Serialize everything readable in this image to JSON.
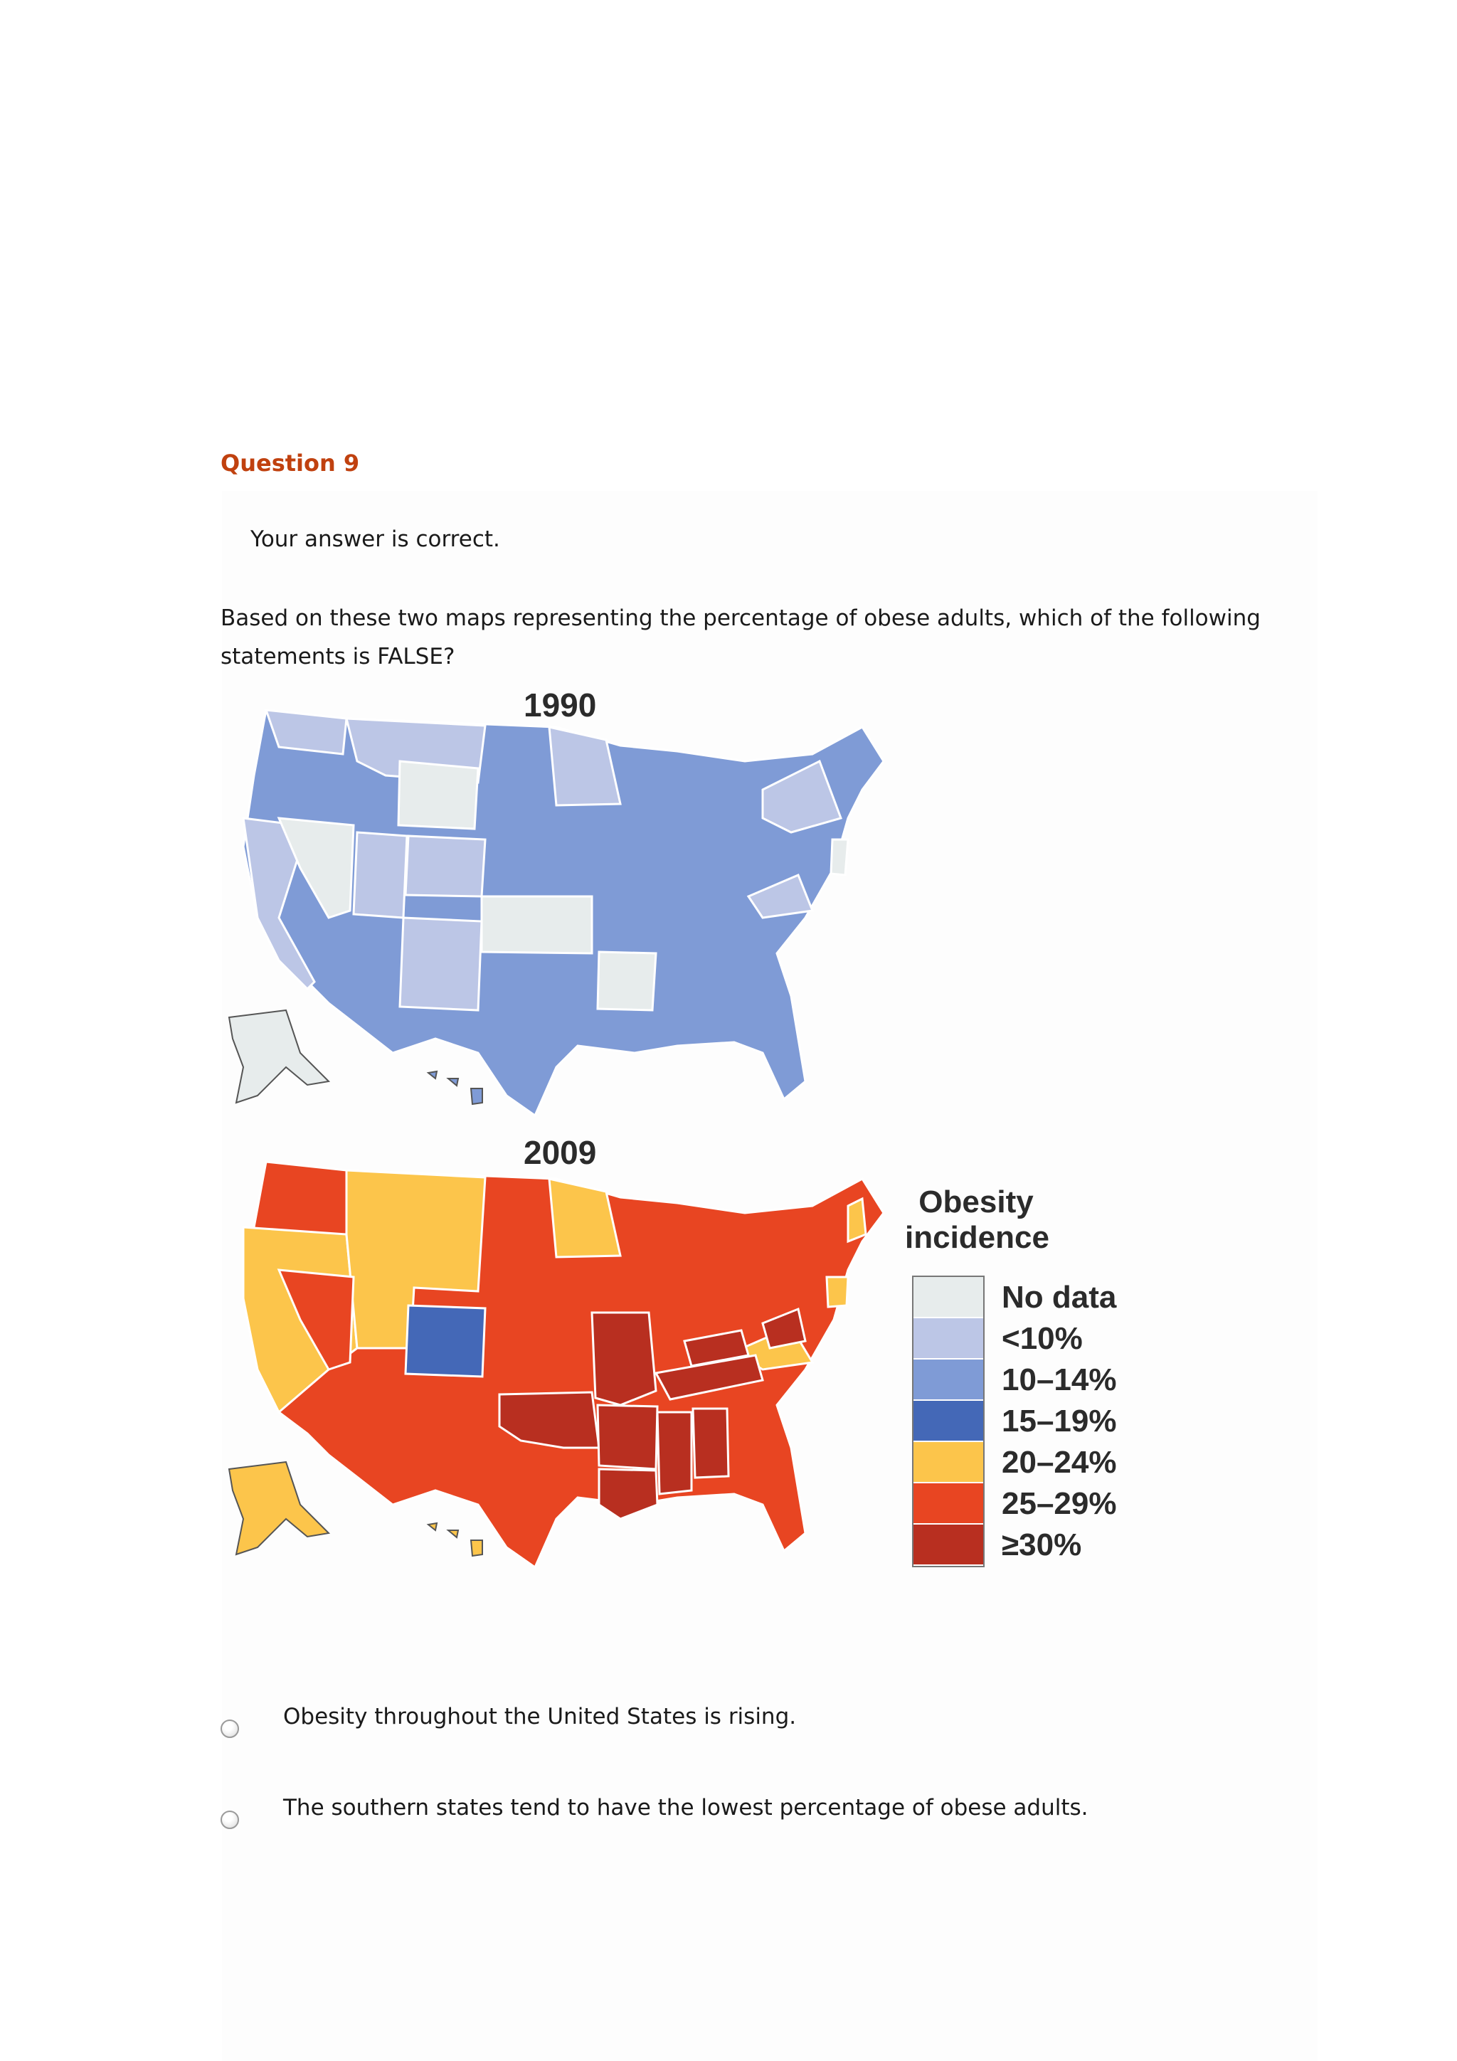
{
  "question": {
    "title": "Question 9",
    "feedback": "Your answer is correct.",
    "prompt": "Based on these two maps representing the percentage of obese adults, which of the following statements is FALSE?"
  },
  "maps": {
    "map_1990": {
      "year": "1990",
      "fill": "#7f9bd6",
      "highlight_no_data": "#e7ecec",
      "light": "#bcc6e6"
    },
    "map_2009": {
      "year": "2009",
      "fill": "#e84522",
      "dark": "#b82f20",
      "yellow": "#fcc54b",
      "blue": "#4468b7"
    }
  },
  "legend": {
    "title": "Obesity incidence",
    "items": [
      {
        "label": "No data",
        "color": "#e7ecec"
      },
      {
        "label": "<10%",
        "color": "#bcc6e6"
      },
      {
        "label": "10–14%",
        "color": "#7f9bd6"
      },
      {
        "label": "15–19%",
        "color": "#4468b7"
      },
      {
        "label": "20–24%",
        "color": "#fcc54b"
      },
      {
        "label": "25–29%",
        "color": "#e84522"
      },
      {
        "label": "≥30%",
        "color": "#b82f20"
      }
    ]
  },
  "options": [
    {
      "text": "Obesity throughout the United States is rising."
    },
    {
      "text": "The southern states tend to have the lowest percentage of obese adults."
    }
  ]
}
